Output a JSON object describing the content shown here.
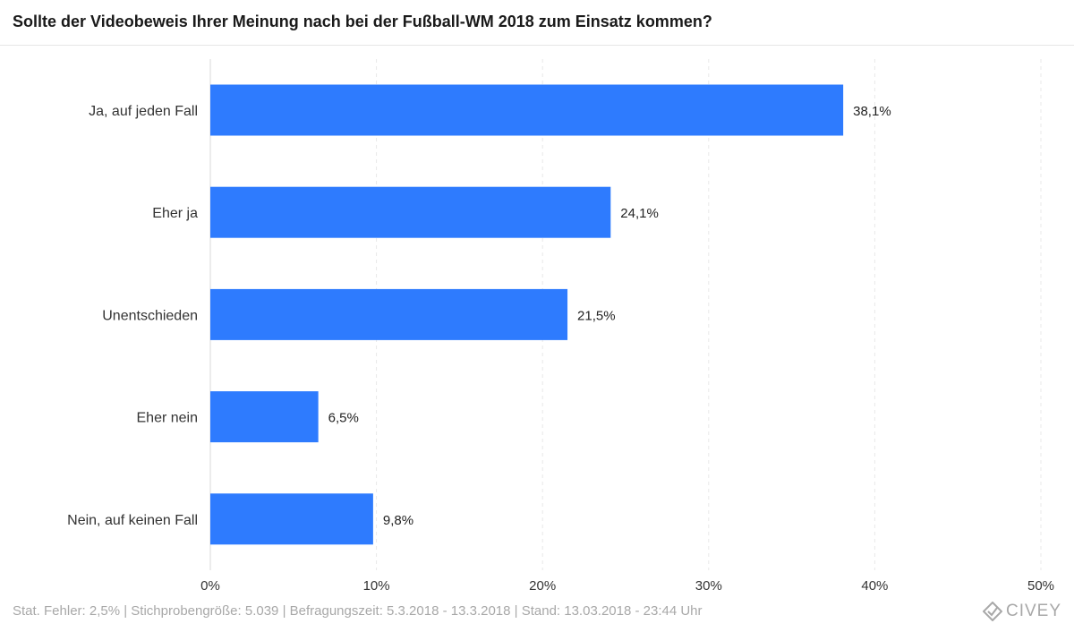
{
  "title": "Sollte der Videobeweis Ihrer Meinung nach bei der Fußball-WM 2018 zum Einsatz kommen?",
  "footer": "Stat. Fehler: 2,5% | Stichprobengröße: 5.039 | Befragungszeit: 5.3.2018 - 13.3.2018 | Stand: 13.03.2018 - 23:44 Uhr",
  "brand": {
    "name": "CIVEY",
    "icon": "civey-logo-icon"
  },
  "colors": {
    "bar": "#2e7bfe",
    "grid": "#e8e8e8"
  },
  "chart_data": {
    "type": "bar",
    "orientation": "horizontal",
    "title": "Sollte der Videobeweis Ihrer Meinung nach bei der Fußball-WM 2018 zum Einsatz kommen?",
    "categories": [
      "Ja, auf jeden Fall",
      "Eher ja",
      "Unentschieden",
      "Eher nein",
      "Nein, auf keinen Fall"
    ],
    "values": [
      38.1,
      24.1,
      21.5,
      6.5,
      9.8
    ],
    "value_labels": [
      "38,1%",
      "24,1%",
      "21,5%",
      "6,5%",
      "9,8%"
    ],
    "xlim": [
      0,
      50
    ],
    "xticks": [
      0,
      10,
      20,
      30,
      40,
      50
    ],
    "xtick_labels": [
      "0%",
      "10%",
      "20%",
      "30%",
      "40%",
      "50%"
    ],
    "xlabel": "",
    "ylabel": "",
    "grid": true,
    "legend": false
  }
}
